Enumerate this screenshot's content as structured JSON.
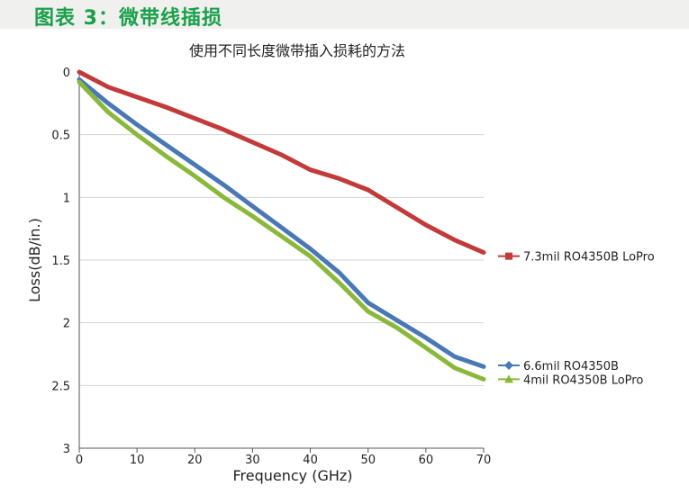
{
  "figure_caption": "图表 3：微带线插损",
  "colors": {
    "caption": "#1aa04a",
    "series": [
      "#c23a3a",
      "#4a78b5",
      "#8ab83a"
    ]
  },
  "chart_data": {
    "type": "line",
    "title": "使用不同长度微带插入损耗的方法",
    "xlabel": "Frequency (GHz)",
    "ylabel": "Loss(dB/in.)",
    "xlim": [
      0,
      70
    ],
    "ylim": [
      0,
      3
    ],
    "y_inverted": true,
    "xticks": [
      "0",
      "10",
      "20",
      "30",
      "40",
      "50",
      "60",
      "70"
    ],
    "yticks": [
      "0",
      "0.5",
      "1",
      "1.5",
      "2",
      "2.5",
      "3"
    ],
    "grid": "horizontal",
    "legend_position": "right",
    "x": [
      0,
      5,
      10,
      15,
      20,
      25,
      30,
      35,
      40,
      45,
      50,
      55,
      60,
      65,
      70
    ],
    "series": [
      {
        "name": "7.3mil RO4350B LoPro",
        "marker": "square",
        "values": [
          0.0,
          0.12,
          0.2,
          0.28,
          0.37,
          0.46,
          0.56,
          0.66,
          0.78,
          0.85,
          0.94,
          1.08,
          1.22,
          1.34,
          1.44
        ]
      },
      {
        "name": "6.6mil RO4350B",
        "marker": "diamond",
        "values": [
          0.06,
          0.25,
          0.42,
          0.58,
          0.74,
          0.9,
          1.07,
          1.24,
          1.41,
          1.6,
          1.84,
          1.98,
          2.12,
          2.27,
          2.35
        ]
      },
      {
        "name": "4mil RO4350B LoPro",
        "marker": "triangle",
        "values": [
          0.08,
          0.32,
          0.5,
          0.67,
          0.83,
          1.0,
          1.15,
          1.31,
          1.47,
          1.68,
          1.91,
          2.04,
          2.2,
          2.36,
          2.45
        ]
      }
    ]
  }
}
